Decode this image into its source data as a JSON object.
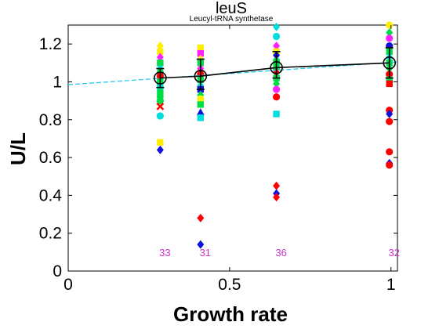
{
  "chart_data": {
    "type": "scatter",
    "title": "leuS",
    "subtitle": "Leucyl-tRNA synthetase",
    "xlabel": "Growth rate",
    "ylabel": "U/L",
    "xlim": [
      0,
      1.02
    ],
    "ylim": [
      0,
      1.3
    ],
    "xticks": [
      "0",
      "0.5",
      "1"
    ],
    "yticks": [
      "0",
      "0.2",
      "0.4",
      "0.6",
      "0.8",
      "1",
      "1.2"
    ],
    "xtick_values": [
      0,
      0.5,
      1
    ],
    "ytick_values": [
      0,
      0.2,
      0.4,
      0.6,
      0.8,
      1,
      1.2
    ],
    "grid": false,
    "count_color": "#cc33cc",
    "fit_line": {
      "color": "#22ccee",
      "style": "dashed",
      "points": [
        [
          0,
          0.985
        ],
        [
          1.02,
          1.105
        ]
      ]
    },
    "mean_line": {
      "color": "#000000",
      "points": [
        [
          0.285,
          1.02
        ],
        [
          0.41,
          1.03
        ],
        [
          0.645,
          1.075
        ],
        [
          0.995,
          1.1
        ]
      ]
    },
    "groups": [
      {
        "x": 0.285,
        "mean": 1.02,
        "err_lo": 0.97,
        "err_hi": 1.07,
        "count": "33"
      },
      {
        "x": 0.41,
        "mean": 1.03,
        "err_lo": 0.96,
        "err_hi": 1.12,
        "count": "31"
      },
      {
        "x": 0.645,
        "mean": 1.075,
        "err_lo": 1.02,
        "err_hi": 1.16,
        "count": "36"
      },
      {
        "x": 0.995,
        "mean": 1.1,
        "err_lo": 1.02,
        "err_hi": 1.18,
        "count": "32"
      }
    ],
    "points": [
      {
        "x": 0.285,
        "y": 1.19,
        "shape": "diamond",
        "color": "#ffee00"
      },
      {
        "x": 0.285,
        "y": 1.16,
        "shape": "square",
        "color": "#ffee00"
      },
      {
        "x": 0.285,
        "y": 1.13,
        "shape": "diamond",
        "color": "#ff22ff"
      },
      {
        "x": 0.285,
        "y": 1.1,
        "shape": "square",
        "color": "#00dd44"
      },
      {
        "x": 0.285,
        "y": 1.07,
        "shape": "diamond",
        "color": "#00dddd"
      },
      {
        "x": 0.285,
        "y": 1.05,
        "shape": "circle",
        "color": "#00dd44"
      },
      {
        "x": 0.285,
        "y": 1.03,
        "shape": "circle",
        "color": "#ff0000"
      },
      {
        "x": 0.285,
        "y": 1.0,
        "shape": "square",
        "color": "#00dd44"
      },
      {
        "x": 0.285,
        "y": 0.97,
        "shape": "square",
        "color": "#00dddd"
      },
      {
        "x": 0.285,
        "y": 0.95,
        "shape": "diamond",
        "color": "#00dd44"
      },
      {
        "x": 0.285,
        "y": 0.93,
        "shape": "square",
        "color": "#00dd44"
      },
      {
        "x": 0.285,
        "y": 0.9,
        "shape": "circle",
        "color": "#00dd44"
      },
      {
        "x": 0.285,
        "y": 0.87,
        "shape": "x",
        "color": "#ff0000"
      },
      {
        "x": 0.285,
        "y": 0.82,
        "shape": "circle",
        "color": "#00dddd"
      },
      {
        "x": 0.285,
        "y": 0.68,
        "shape": "square",
        "color": "#ffee00"
      },
      {
        "x": 0.285,
        "y": 0.64,
        "shape": "diamond",
        "color": "#1111dd"
      },
      {
        "x": 0.41,
        "y": 1.18,
        "shape": "square",
        "color": "#ffee00"
      },
      {
        "x": 0.41,
        "y": 1.15,
        "shape": "square",
        "color": "#ff22ff"
      },
      {
        "x": 0.41,
        "y": 1.12,
        "shape": "diamond",
        "color": "#ffee00"
      },
      {
        "x": 0.41,
        "y": 1.1,
        "shape": "square",
        "color": "#00dd44"
      },
      {
        "x": 0.41,
        "y": 1.07,
        "shape": "diamond",
        "color": "#ff22ff"
      },
      {
        "x": 0.41,
        "y": 1.04,
        "shape": "circle",
        "color": "#ff0000"
      },
      {
        "x": 0.41,
        "y": 1.01,
        "shape": "square",
        "color": "#00dd44"
      },
      {
        "x": 0.41,
        "y": 0.98,
        "shape": "diamond",
        "color": "#00dddd"
      },
      {
        "x": 0.41,
        "y": 0.96,
        "shape": "square",
        "color": "#1111dd"
      },
      {
        "x": 0.41,
        "y": 0.93,
        "shape": "diamond",
        "color": "#00dd44"
      },
      {
        "x": 0.41,
        "y": 0.91,
        "shape": "circle",
        "color": "#ffee00"
      },
      {
        "x": 0.41,
        "y": 0.88,
        "shape": "square",
        "color": "#00dd44"
      },
      {
        "x": 0.41,
        "y": 0.84,
        "shape": "triangle",
        "color": "#1111dd"
      },
      {
        "x": 0.41,
        "y": 0.81,
        "shape": "square",
        "color": "#00dddd"
      },
      {
        "x": 0.41,
        "y": 0.28,
        "shape": "diamond",
        "color": "#ff0000"
      },
      {
        "x": 0.41,
        "y": 0.14,
        "shape": "diamond",
        "color": "#1111dd"
      },
      {
        "x": 0.645,
        "y": 1.29,
        "shape": "diamond",
        "color": "#00dddd"
      },
      {
        "x": 0.645,
        "y": 1.24,
        "shape": "circle",
        "color": "#00dddd"
      },
      {
        "x": 0.645,
        "y": 1.19,
        "shape": "diamond",
        "color": "#ff22ff"
      },
      {
        "x": 0.645,
        "y": 1.16,
        "shape": "square",
        "color": "#ffee00"
      },
      {
        "x": 0.645,
        "y": 1.14,
        "shape": "diamond",
        "color": "#1111dd"
      },
      {
        "x": 0.645,
        "y": 1.11,
        "shape": "circle",
        "color": "#00dd44"
      },
      {
        "x": 0.645,
        "y": 1.08,
        "shape": "square",
        "color": "#00dd44"
      },
      {
        "x": 0.645,
        "y": 1.05,
        "shape": "diamond",
        "color": "#ff0000"
      },
      {
        "x": 0.645,
        "y": 1.02,
        "shape": "square",
        "color": "#00dd44"
      },
      {
        "x": 0.645,
        "y": 0.99,
        "shape": "diamond",
        "color": "#00dd44"
      },
      {
        "x": 0.645,
        "y": 0.96,
        "shape": "circle",
        "color": "#ff22ff"
      },
      {
        "x": 0.645,
        "y": 0.92,
        "shape": "circle",
        "color": "#ff0000"
      },
      {
        "x": 0.645,
        "y": 0.83,
        "shape": "square",
        "color": "#00dddd"
      },
      {
        "x": 0.645,
        "y": 0.45,
        "shape": "diamond",
        "color": "#ff0000"
      },
      {
        "x": 0.645,
        "y": 0.41,
        "shape": "diamond",
        "color": "#1111dd"
      },
      {
        "x": 0.645,
        "y": 0.39,
        "shape": "diamond",
        "color": "#ff0000"
      },
      {
        "x": 0.995,
        "y": 1.3,
        "shape": "circle",
        "color": "#ffee00"
      },
      {
        "x": 0.995,
        "y": 1.26,
        "shape": "diamond",
        "color": "#00dd44"
      },
      {
        "x": 0.995,
        "y": 1.23,
        "shape": "circle",
        "color": "#ff22ff"
      },
      {
        "x": 0.995,
        "y": 1.19,
        "shape": "circle",
        "color": "#1111dd"
      },
      {
        "x": 0.995,
        "y": 1.16,
        "shape": "square",
        "color": "#00dd44"
      },
      {
        "x": 0.995,
        "y": 1.13,
        "shape": "diamond",
        "color": "#00dddd"
      },
      {
        "x": 0.995,
        "y": 1.1,
        "shape": "square",
        "color": "#00dd44"
      },
      {
        "x": 0.995,
        "y": 1.07,
        "shape": "diamond",
        "color": "#00dd44"
      },
      {
        "x": 0.995,
        "y": 1.04,
        "shape": "circle",
        "color": "#ff0000"
      },
      {
        "x": 0.995,
        "y": 1.01,
        "shape": "square",
        "color": "#00dd44"
      },
      {
        "x": 0.995,
        "y": 0.99,
        "shape": "square",
        "color": "#ff0000"
      },
      {
        "x": 0.995,
        "y": 0.85,
        "shape": "circle",
        "color": "#ff0000"
      },
      {
        "x": 0.995,
        "y": 0.83,
        "shape": "diamond",
        "color": "#1111dd"
      },
      {
        "x": 0.995,
        "y": 0.79,
        "shape": "circle",
        "color": "#ff0000"
      },
      {
        "x": 0.995,
        "y": 0.63,
        "shape": "circle",
        "color": "#ff0000"
      },
      {
        "x": 0.995,
        "y": 0.57,
        "shape": "diamond",
        "color": "#1111dd"
      },
      {
        "x": 0.995,
        "y": 0.56,
        "shape": "circle",
        "color": "#ff0000"
      }
    ]
  }
}
